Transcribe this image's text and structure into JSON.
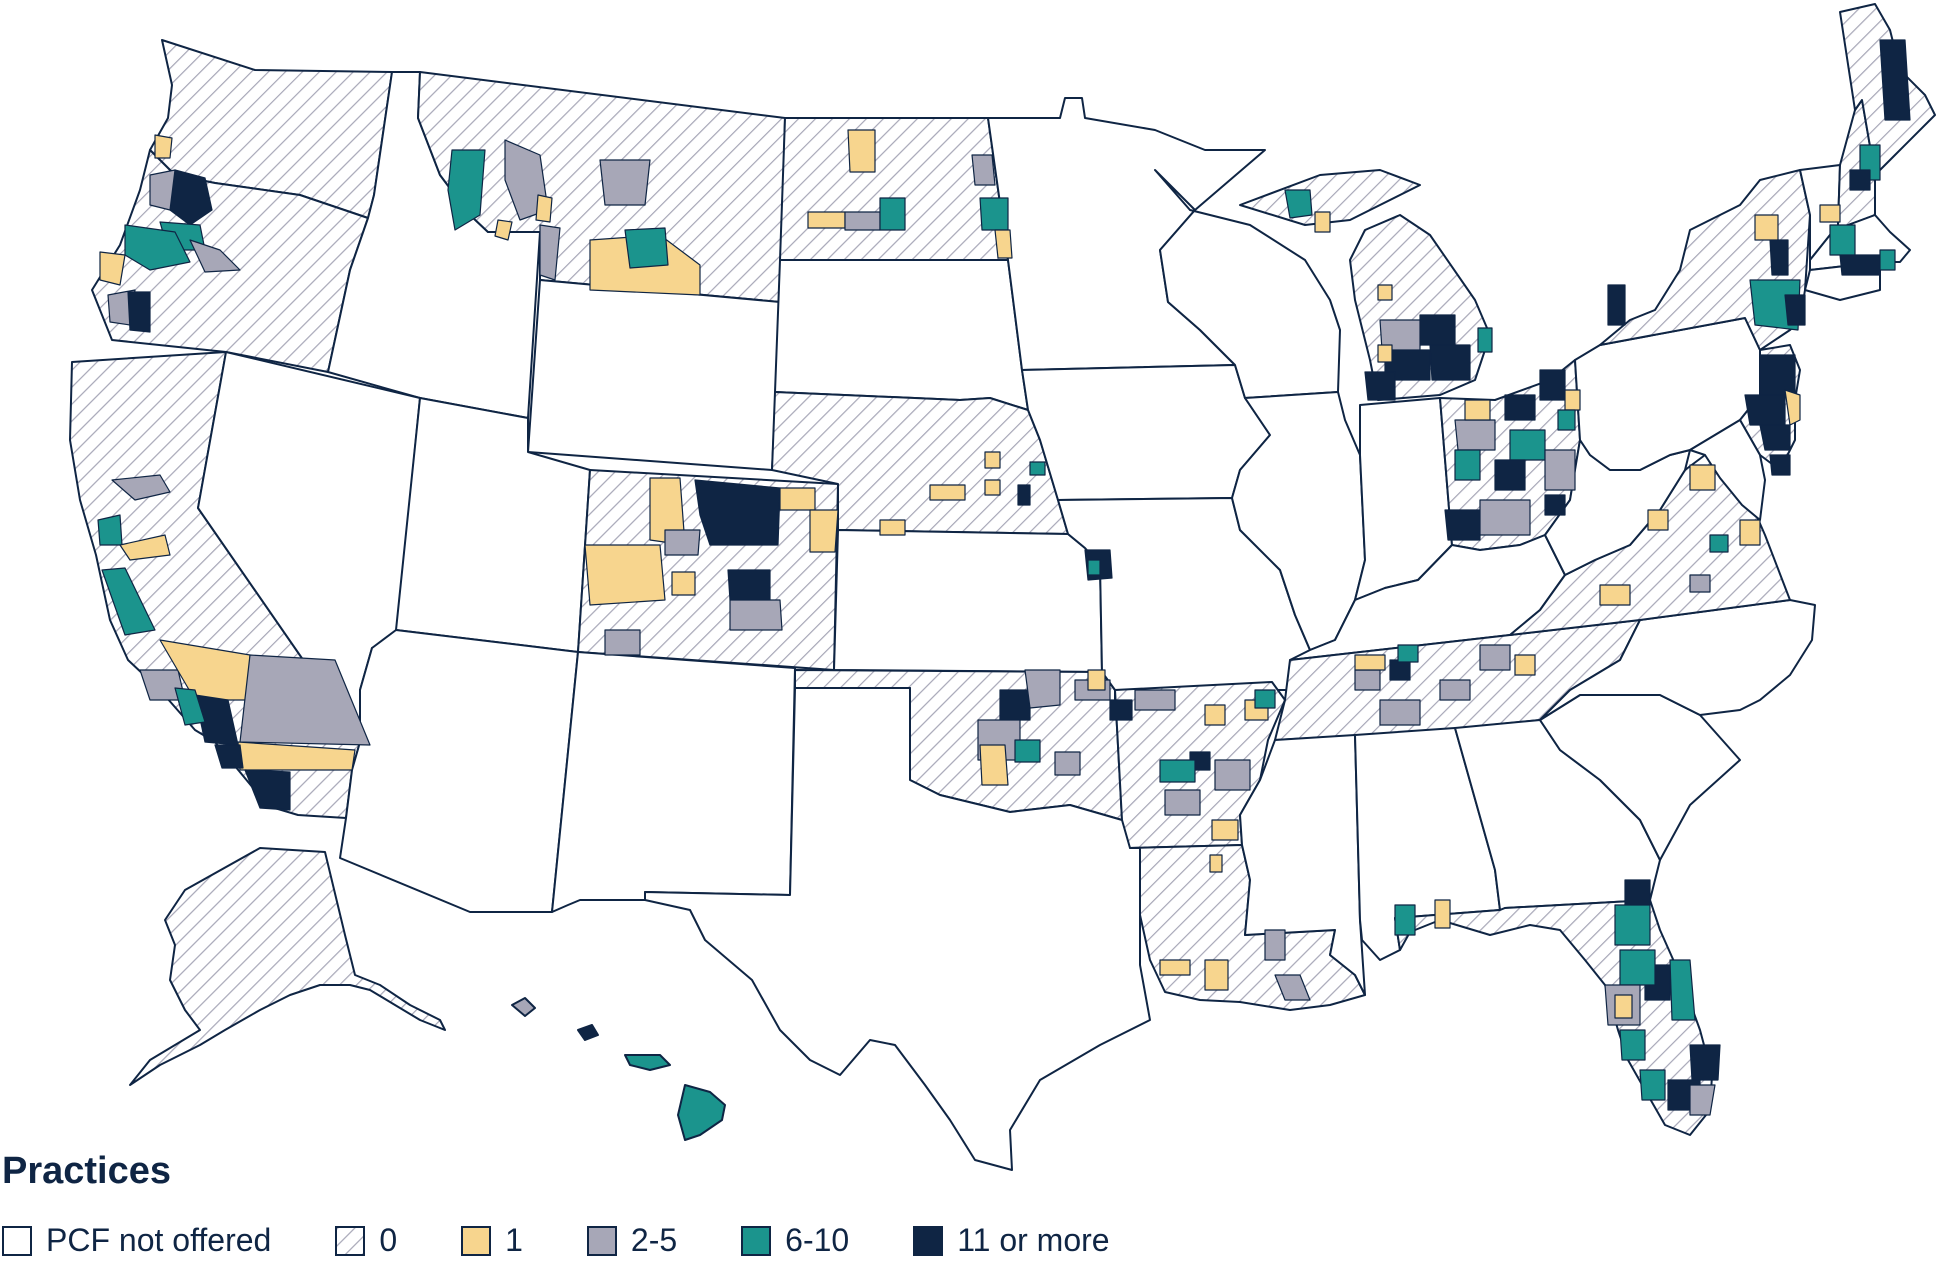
{
  "legend": {
    "title": "Practices",
    "items": [
      {
        "key": "not-offered",
        "label": "PCF not offered",
        "fill": "#ffffff"
      },
      {
        "key": "zero",
        "label": "0",
        "fill": "hatch"
      },
      {
        "key": "one",
        "label": "1",
        "fill": "#f7d58e"
      },
      {
        "key": "two-five",
        "label": "2-5",
        "fill": "#a7a7b7"
      },
      {
        "key": "six-ten",
        "label": "6-10",
        "fill": "#1b948d"
      },
      {
        "key": "eleven-plus",
        "label": "11 or more",
        "fill": "#0f2544"
      }
    ]
  },
  "colors": {
    "outline": "#0f2544",
    "hatch_line": "#a7a7b7",
    "one": "#f7d58e",
    "two_five": "#a7a7b7",
    "six_ten": "#1b948d",
    "eleven_plus": "#0f2544"
  },
  "states": {
    "pcf_offered_hatched": [
      "WA",
      "OR",
      "CA",
      "MT",
      "ND",
      "NE",
      "CO",
      "OK",
      "AR",
      "LA",
      "MI",
      "OH",
      "VA",
      "TN",
      "NY",
      "NJ",
      "NH",
      "ME",
      "FL",
      "AK",
      "HI"
    ],
    "pcf_not_offered": [
      "ID",
      "NV",
      "UT",
      "AZ",
      "WY",
      "SD",
      "MN",
      "WI",
      "IA",
      "IL",
      "IN",
      "KS",
      "MO",
      "NM",
      "TX",
      "MS",
      "AL",
      "GA",
      "SC",
      "NC",
      "KY",
      "WV",
      "PA",
      "VT",
      "MA",
      "CT",
      "RI",
      "DE",
      "MD"
    ]
  }
}
